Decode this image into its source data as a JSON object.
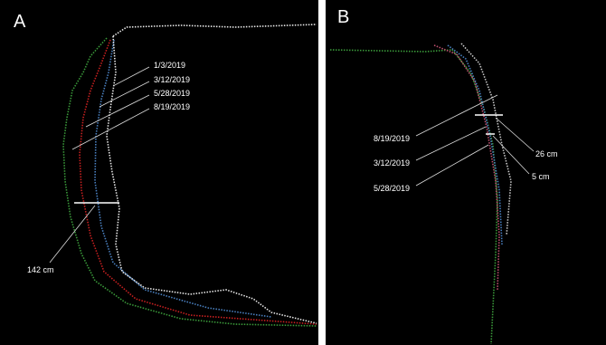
{
  "panels": [
    {
      "label": "A",
      "dates": [
        "1/3/2019",
        "3/12/2019",
        "5/28/2019",
        "8/19/2019"
      ],
      "measurements": [
        "142 cm"
      ]
    },
    {
      "label": "B",
      "dates": [
        "8/19/2019",
        "3/12/2019",
        "5/28/2019"
      ],
      "measurements": [
        "26 cm",
        "5 cm"
      ]
    }
  ]
}
